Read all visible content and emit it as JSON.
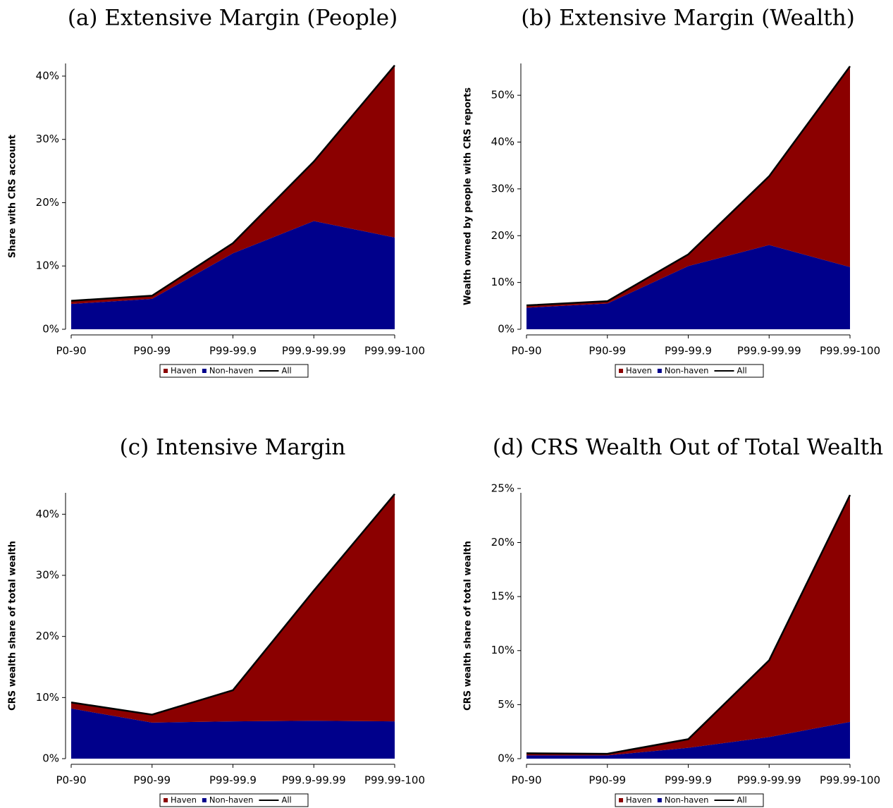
{
  "chart_data": [
    {
      "type": "stacked-area",
      "title": "(a) Extensive Margin (People)",
      "ylabel": "Share with CRS account",
      "categories": [
        "P0-90",
        "P90-99",
        "P99-99.9",
        "P99.9-99.99",
        "P99.99-100"
      ],
      "series": [
        {
          "name": "Haven",
          "color": "#8b0000",
          "values": [
            0.5,
            0.5,
            1.6,
            9.4,
            27.2
          ]
        },
        {
          "name": "Non-haven",
          "color": "#00008b",
          "values": [
            4.0,
            4.8,
            12.0,
            17.1,
            14.5
          ]
        },
        {
          "name": "All",
          "color": "#000000",
          "values": [
            4.5,
            5.3,
            13.6,
            26.5,
            41.7
          ]
        }
      ],
      "ylim": [
        0,
        42
      ],
      "yticks": [
        {
          "value": 0,
          "label": "0%"
        },
        {
          "value": 10,
          "label": "10%"
        },
        {
          "value": 20,
          "label": "20%"
        },
        {
          "value": 30,
          "label": "30%"
        },
        {
          "value": 40,
          "label": "40%"
        }
      ]
    },
    {
      "type": "stacked-area",
      "title": "(b) Extensive Margin (Wealth)",
      "ylabel": "Wealth owned by people with CRS reports",
      "categories": [
        "P0-90",
        "P90-99",
        "P99-99.9",
        "P99.9-99.99",
        "P99.99-100"
      ],
      "series": [
        {
          "name": "Haven",
          "color": "#8b0000",
          "values": [
            0.5,
            0.5,
            2.5,
            14.7,
            42.9
          ]
        },
        {
          "name": "Non-haven",
          "color": "#00008b",
          "values": [
            4.6,
            5.5,
            13.5,
            18.0,
            13.3
          ]
        },
        {
          "name": "All",
          "color": "#000000",
          "values": [
            5.1,
            6.0,
            16.0,
            32.7,
            56.2
          ]
        }
      ],
      "ylim": [
        0,
        56.8
      ],
      "yticks": [
        {
          "value": 0,
          "label": "0%"
        },
        {
          "value": 10,
          "label": "10%"
        },
        {
          "value": 20,
          "label": "20%"
        },
        {
          "value": 30,
          "label": "30%"
        },
        {
          "value": 40,
          "label": "40%"
        },
        {
          "value": 50,
          "label": "50%"
        }
      ]
    },
    {
      "type": "stacked-area",
      "title": "(c) Intensive Margin",
      "ylabel": "CRS wealth share of total wealth",
      "categories": [
        "P0-90",
        "P90-99",
        "P99-99.9",
        "P99.9-99.99",
        "P99.99-100"
      ],
      "series": [
        {
          "name": "Haven",
          "color": "#8b0000",
          "values": [
            1.0,
            1.3,
            5.1,
            21.3,
            37.2
          ]
        },
        {
          "name": "Non-haven",
          "color": "#00008b",
          "values": [
            8.2,
            5.9,
            6.1,
            6.2,
            6.1
          ]
        },
        {
          "name": "All",
          "color": "#000000",
          "values": [
            9.2,
            7.2,
            11.2,
            27.5,
            43.3
          ]
        }
      ],
      "ylim": [
        0,
        43.5
      ],
      "yticks": [
        {
          "value": 0,
          "label": "0%"
        },
        {
          "value": 10,
          "label": "10%"
        },
        {
          "value": 20,
          "label": "20%"
        },
        {
          "value": 30,
          "label": "30%"
        },
        {
          "value": 40,
          "label": "40%"
        }
      ]
    },
    {
      "type": "stacked-area",
      "title": "(d) CRS Wealth Out of Total Wealth",
      "ylabel": "CRS wealth share of total wealth",
      "categories": [
        "P0-90",
        "P90-99",
        "P99-99.9",
        "P99.9-99.99",
        "P99.99-100"
      ],
      "series": [
        {
          "name": "Haven",
          "color": "#8b0000",
          "values": [
            0.2,
            0.15,
            0.8,
            7.1,
            21.0
          ]
        },
        {
          "name": "Non-haven",
          "color": "#00008b",
          "values": [
            0.3,
            0.3,
            1.0,
            2.0,
            3.4
          ]
        },
        {
          "name": "All",
          "color": "#000000",
          "values": [
            0.5,
            0.45,
            1.8,
            9.1,
            24.4
          ]
        }
      ],
      "ylim": [
        0,
        24.6
      ],
      "yticks": [
        {
          "value": 0,
          "label": "0%"
        },
        {
          "value": 5,
          "label": "5%"
        },
        {
          "value": 10,
          "label": "10%"
        },
        {
          "value": 15,
          "label": "15%"
        },
        {
          "value": 20,
          "label": "20%"
        },
        {
          "value": 25,
          "label": "25%"
        }
      ]
    }
  ]
}
